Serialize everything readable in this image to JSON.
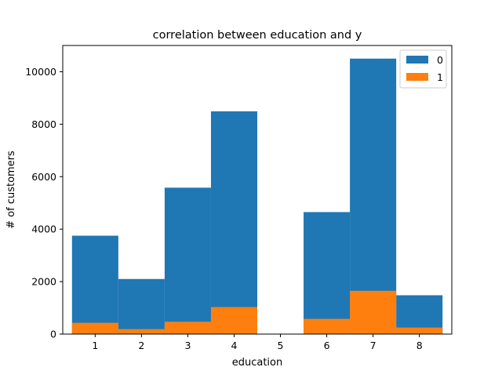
{
  "chart_data": {
    "type": "bar",
    "title": "correlation between education and y",
    "xlabel": "education",
    "ylabel": "# of customers",
    "categories": [
      "1",
      "2",
      "3",
      "4",
      "5",
      "6",
      "7",
      "8"
    ],
    "x_ticks": [
      "1",
      "2",
      "3",
      "4",
      "5",
      "6",
      "7",
      "8"
    ],
    "y_ticks": [
      "0",
      "2000",
      "4000",
      "6000",
      "8000",
      "10000"
    ],
    "y_tick_values": [
      0,
      2000,
      4000,
      6000,
      8000,
      10000
    ],
    "ylim": [
      0,
      11000
    ],
    "xlim": [
      0.3,
      8.7
    ],
    "overlapping": true,
    "grid": false,
    "legend_position": "top-right",
    "series": [
      {
        "name": "0",
        "color": "#1f77b4",
        "values": [
          3750,
          2100,
          5580,
          8490,
          0,
          4650,
          10500,
          1480
        ]
      },
      {
        "name": "1",
        "color": "#ff7f0e",
        "values": [
          430,
          190,
          470,
          1030,
          0,
          580,
          1650,
          250
        ]
      }
    ]
  }
}
